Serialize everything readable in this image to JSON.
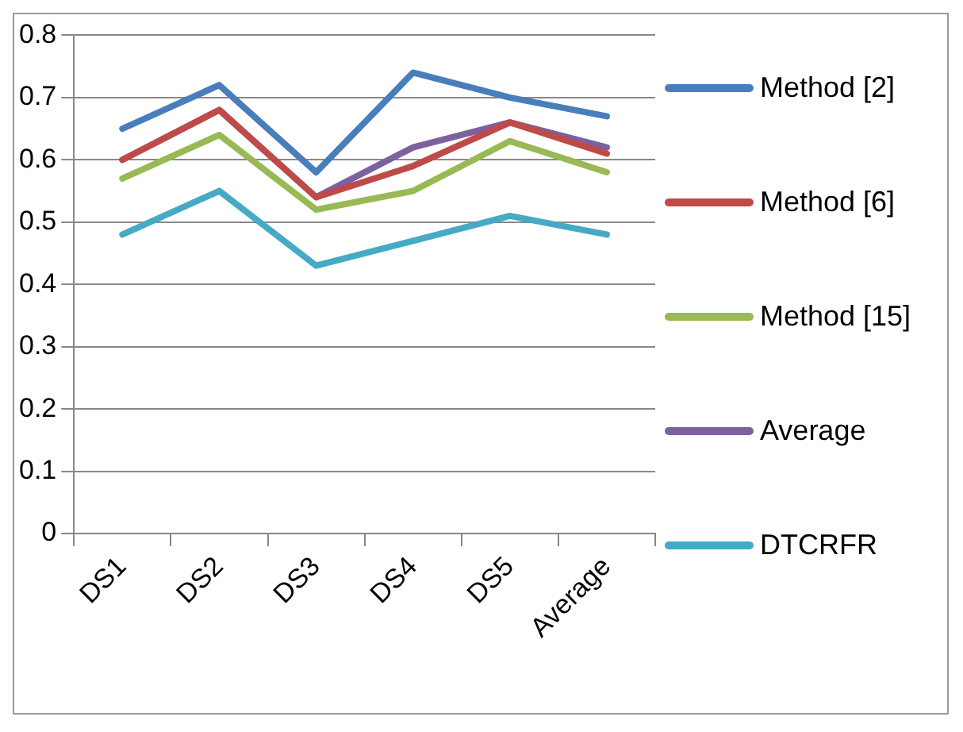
{
  "chart_data": {
    "type": "line",
    "categories": [
      "DS1",
      "DS2",
      "DS3",
      "DS4",
      "DS5",
      "Average"
    ],
    "series": [
      {
        "name": "Method [2]",
        "color": "#4a7ebb",
        "values": [
          0.65,
          0.72,
          0.58,
          0.74,
          0.7,
          0.67
        ]
      },
      {
        "name": "Method [6]",
        "color": "#be4b48",
        "values": [
          0.6,
          0.68,
          0.54,
          0.59,
          0.66,
          0.61
        ]
      },
      {
        "name": "Method [15]",
        "color": "#98b954",
        "values": [
          0.57,
          0.64,
          0.52,
          0.55,
          0.63,
          0.58
        ]
      },
      {
        "name": "Average",
        "color": "#7d60a0",
        "values": [
          0.6,
          0.68,
          0.54,
          0.62,
          0.66,
          0.62
        ]
      },
      {
        "name": "DTCRFR",
        "color": "#46aac5",
        "values": [
          0.48,
          0.55,
          0.43,
          0.47,
          0.51,
          0.48
        ]
      }
    ],
    "ylim": [
      0,
      0.8
    ],
    "yticks": [
      0,
      0.1,
      0.2,
      0.3,
      0.4,
      0.5,
      0.6,
      0.7,
      0.8
    ],
    "grid": "y",
    "legend": "right",
    "marker": "none",
    "line_style": "solid"
  }
}
